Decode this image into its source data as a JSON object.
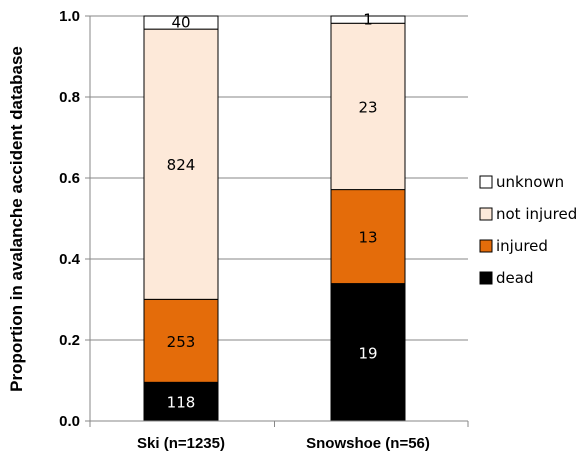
{
  "chart_data": {
    "type": "bar",
    "stacked": true,
    "categories": [
      "Ski (n=1235)",
      "Snowshoe (n=56)"
    ],
    "series": [
      {
        "name": "dead",
        "color": "#000000",
        "label_color": "#ffffff",
        "values": [
          0.0955,
          0.3393
        ],
        "labels": [
          "118",
          "19"
        ]
      },
      {
        "name": "injured",
        "color": "#e46c0a",
        "label_color": "#000000",
        "values": [
          0.2049,
          0.2321
        ],
        "labels": [
          "253",
          "13"
        ]
      },
      {
        "name": "not injured",
        "color": "#fde9d9",
        "label_color": "#000000",
        "values": [
          0.6672,
          0.4107
        ],
        "labels": [
          "824",
          "23"
        ]
      },
      {
        "name": "unknown",
        "color": "#ffffff",
        "label_color": "#000000",
        "values": [
          0.0324,
          0.0179
        ],
        "labels": [
          "40",
          "1"
        ]
      }
    ],
    "ylabel": "Proportion in avalanche accident database",
    "ylim": [
      0,
      1.0
    ],
    "yticks": [
      "0.0",
      "0.2",
      "0.4",
      "0.6",
      "0.8",
      "1.0"
    ],
    "grid": true,
    "legend_position": "right"
  }
}
